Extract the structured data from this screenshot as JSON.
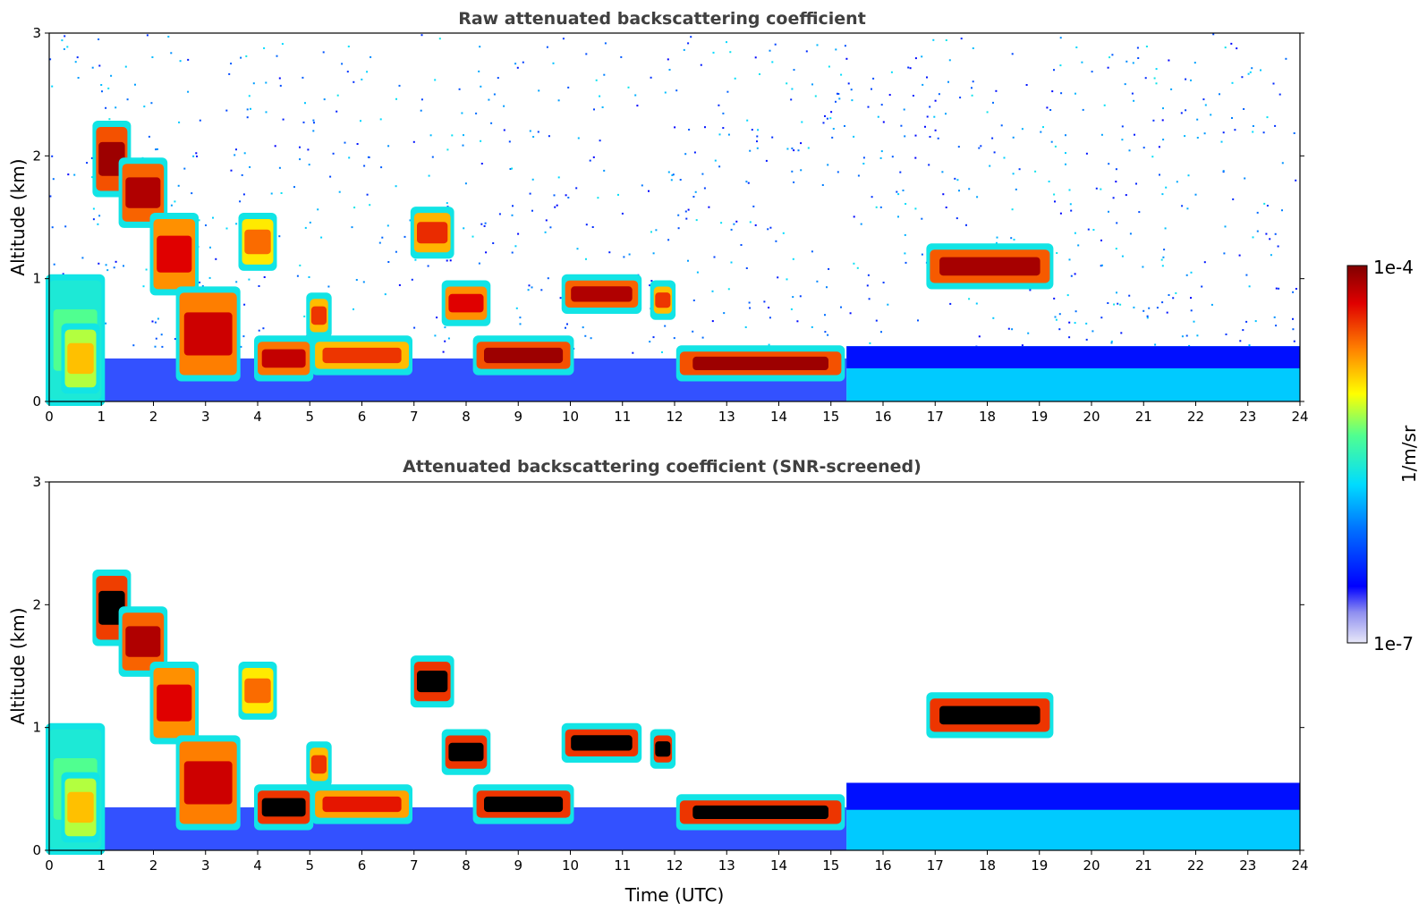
{
  "chart_data": [
    {
      "type": "heatmap",
      "title": "Raw attenuated backscattering coefficient",
      "xlabel": "",
      "ylabel": "Altitude (km)",
      "xlim": [
        0,
        24
      ],
      "ylim": [
        0,
        3
      ],
      "xticks": [
        "0",
        "1",
        "2",
        "3",
        "4",
        "5",
        "6",
        "7",
        "8",
        "9",
        "10",
        "11",
        "12",
        "13",
        "14",
        "15",
        "16",
        "17",
        "18",
        "19",
        "20",
        "21",
        "22",
        "23",
        "24"
      ],
      "yticks": [
        "0",
        "1",
        "2",
        "3"
      ],
      "screened": false,
      "cloud_layers": [
        {
          "t0": 0.0,
          "t1": 1.0,
          "z0": 0.0,
          "z1": 1.0,
          "level": 0.55
        },
        {
          "t0": 0.3,
          "t1": 0.9,
          "z0": 0.1,
          "z1": 0.6,
          "level": 0.72
        },
        {
          "t0": 0.9,
          "t1": 1.5,
          "z0": 1.7,
          "z1": 2.25,
          "level": 0.97
        },
        {
          "t0": 1.4,
          "t1": 2.2,
          "z0": 1.45,
          "z1": 1.95,
          "level": 0.95
        },
        {
          "t0": 2.0,
          "t1": 2.8,
          "z0": 0.9,
          "z1": 1.5,
          "level": 0.9
        },
        {
          "t0": 2.5,
          "t1": 3.6,
          "z0": 0.2,
          "z1": 0.9,
          "level": 0.92
        },
        {
          "t0": 3.7,
          "t1": 4.3,
          "z0": 1.1,
          "z1": 1.5,
          "level": 0.8
        },
        {
          "t0": 4.0,
          "t1": 5.0,
          "z0": 0.2,
          "z1": 0.5,
          "level": 0.93
        },
        {
          "t0": 5.0,
          "t1": 5.35,
          "z0": 0.55,
          "z1": 0.85,
          "level": 0.85
        },
        {
          "t0": 5.1,
          "t1": 6.9,
          "z0": 0.25,
          "z1": 0.5,
          "level": 0.85
        },
        {
          "t0": 7.0,
          "t1": 7.7,
          "z0": 1.2,
          "z1": 1.55,
          "level": 0.86
        },
        {
          "t0": 7.6,
          "t1": 8.4,
          "z0": 0.65,
          "z1": 0.95,
          "level": 0.9
        },
        {
          "t0": 8.2,
          "t1": 10.0,
          "z0": 0.25,
          "z1": 0.5,
          "level": 0.97
        },
        {
          "t0": 9.9,
          "t1": 11.3,
          "z0": 0.75,
          "z1": 1.0,
          "level": 0.95
        },
        {
          "t0": 11.6,
          "t1": 11.95,
          "z0": 0.7,
          "z1": 0.95,
          "level": 0.85
        },
        {
          "t0": 12.1,
          "t1": 15.2,
          "z0": 0.2,
          "z1": 0.42,
          "level": 0.97
        },
        {
          "t0": 16.9,
          "t1": 19.2,
          "z0": 0.95,
          "z1": 1.25,
          "level": 0.96
        }
      ],
      "aerosol_layer": {
        "t0": 15.3,
        "t1": 24,
        "top_km": 0.45,
        "level": 0.4
      }
    },
    {
      "type": "heatmap",
      "title": "Attenuated backscattering coefficient (SNR-screened)",
      "xlabel": "Time (UTC)",
      "ylabel": "Altitude (km)",
      "xlim": [
        0,
        24
      ],
      "ylim": [
        0,
        3
      ],
      "xticks": [
        "0",
        "1",
        "2",
        "3",
        "4",
        "5",
        "6",
        "7",
        "8",
        "9",
        "10",
        "11",
        "12",
        "13",
        "14",
        "15",
        "16",
        "17",
        "18",
        "19",
        "20",
        "21",
        "22",
        "23",
        "24"
      ],
      "yticks": [
        "0",
        "1",
        "2",
        "3"
      ],
      "screened": true,
      "cloud_layers": [
        {
          "t0": 0.0,
          "t1": 1.0,
          "z0": 0.0,
          "z1": 1.0,
          "level": 0.55
        },
        {
          "t0": 0.3,
          "t1": 0.9,
          "z0": 0.1,
          "z1": 0.6,
          "level": 0.72
        },
        {
          "t0": 0.9,
          "t1": 1.5,
          "z0": 1.7,
          "z1": 2.25,
          "level": 0.99
        },
        {
          "t0": 1.4,
          "t1": 2.2,
          "z0": 1.45,
          "z1": 1.95,
          "level": 0.95
        },
        {
          "t0": 2.0,
          "t1": 2.8,
          "z0": 0.9,
          "z1": 1.5,
          "level": 0.9
        },
        {
          "t0": 2.5,
          "t1": 3.6,
          "z0": 0.2,
          "z1": 0.9,
          "level": 0.92
        },
        {
          "t0": 3.7,
          "t1": 4.3,
          "z0": 1.1,
          "z1": 1.5,
          "level": 0.8
        },
        {
          "t0": 4.0,
          "t1": 5.0,
          "z0": 0.2,
          "z1": 0.5,
          "level": 1.0
        },
        {
          "t0": 5.0,
          "t1": 5.35,
          "z0": 0.55,
          "z1": 0.85,
          "level": 0.85
        },
        {
          "t0": 5.1,
          "t1": 6.9,
          "z0": 0.25,
          "z1": 0.5,
          "level": 0.88
        },
        {
          "t0": 7.0,
          "t1": 7.7,
          "z0": 1.2,
          "z1": 1.55,
          "level": 1.0
        },
        {
          "t0": 7.6,
          "t1": 8.4,
          "z0": 0.65,
          "z1": 0.95,
          "level": 1.0
        },
        {
          "t0": 8.2,
          "t1": 10.0,
          "z0": 0.25,
          "z1": 0.5,
          "level": 1.0
        },
        {
          "t0": 9.9,
          "t1": 11.3,
          "z0": 0.75,
          "z1": 1.0,
          "level": 1.0
        },
        {
          "t0": 11.6,
          "t1": 11.95,
          "z0": 0.7,
          "z1": 0.95,
          "level": 1.0
        },
        {
          "t0": 12.1,
          "t1": 15.2,
          "z0": 0.2,
          "z1": 0.42,
          "level": 1.0
        },
        {
          "t0": 16.9,
          "t1": 19.2,
          "z0": 0.95,
          "z1": 1.25,
          "level": 1.0
        }
      ],
      "aerosol_layer": {
        "t0": 15.3,
        "t1": 24,
        "top_km": 0.55,
        "level": 0.4
      }
    }
  ],
  "colorbar": {
    "label": "1/m/sr",
    "max_label": "1e-4",
    "min_label": "1e-7",
    "scale": "log",
    "colormap": "jet-like",
    "screened_max_color": "#000000"
  }
}
